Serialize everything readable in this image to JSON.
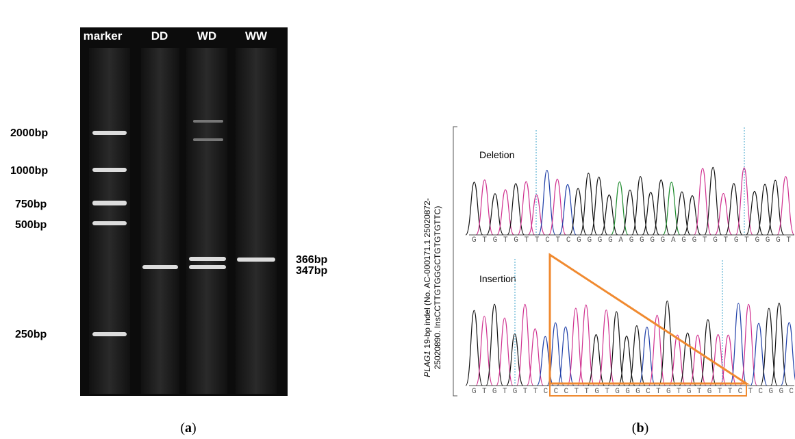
{
  "panel_a": {
    "label": "a",
    "lanes": [
      "marker",
      "DD",
      "WD",
      "WW"
    ],
    "marker_sizes": [
      "2000bp",
      "1000bp",
      "750bp",
      "500bp",
      "250bp"
    ],
    "band_sizes": [
      "366bp",
      "347bp"
    ]
  },
  "panel_b": {
    "label": "b",
    "gene": "PLAG1",
    "axis_line1": " 19-bp indel  (No. AC-000171.1  25020872-",
    "axis_line2": "25020890. InsCCTTGTGGGCTGTGTGTTC)",
    "deletion": {
      "title": "Deletion",
      "sequence": "GTGTGTTCTCGGGGAGGGGAGGTGTGTGGGT"
    },
    "insertion": {
      "title": "Insertion",
      "sequence": "GTGTGTTCCCTTGTGGGCTGTGTGTTCTCGGC"
    }
  }
}
